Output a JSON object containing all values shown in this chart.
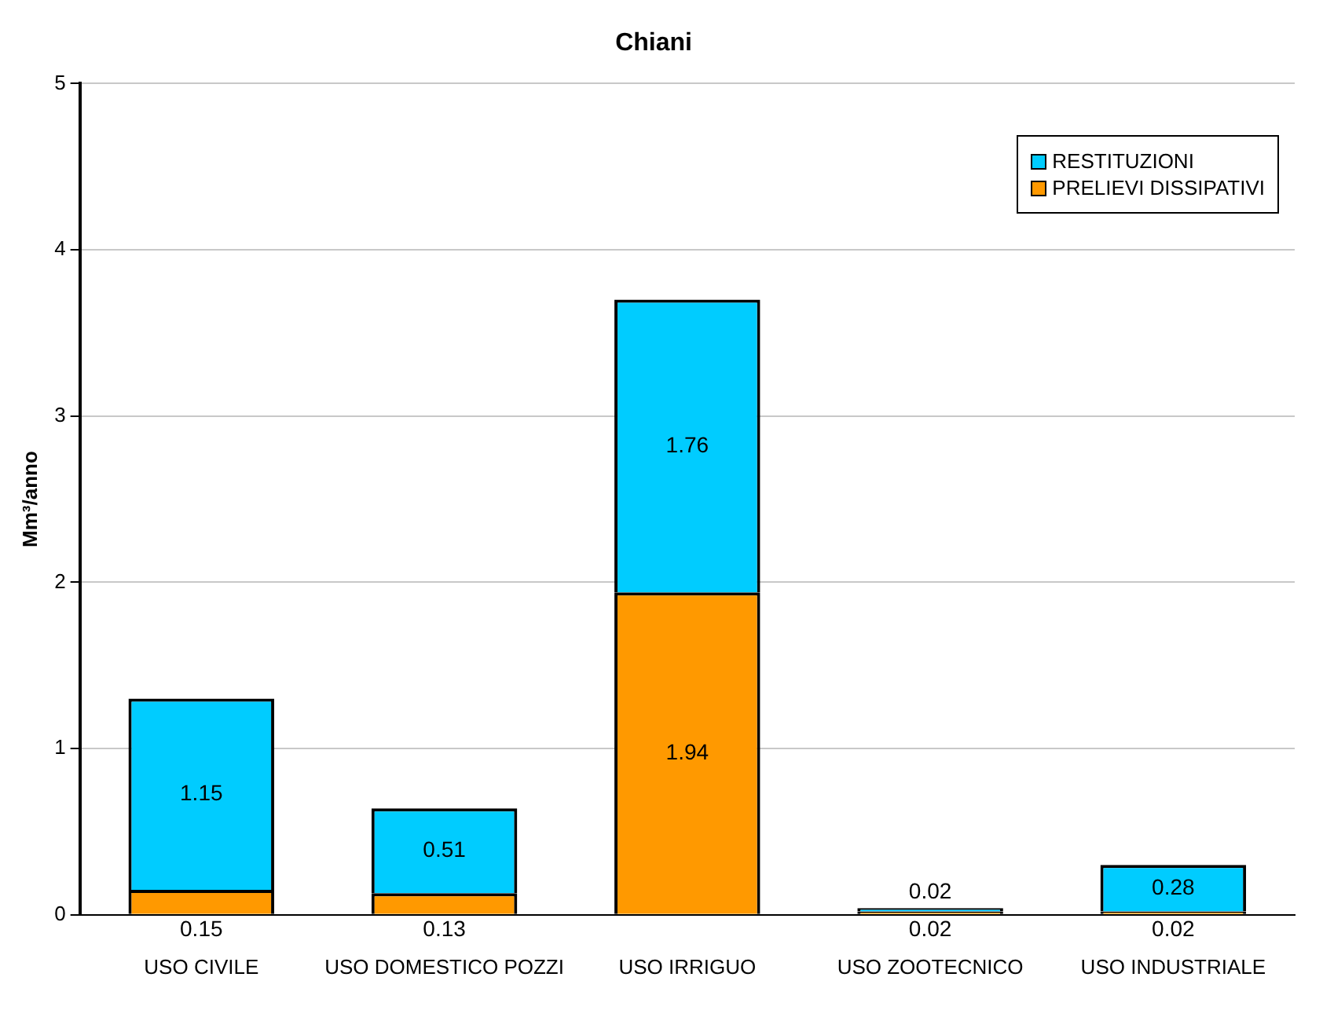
{
  "chart_data": {
    "type": "bar",
    "title": "Chiani",
    "ylabel": "Mm³/anno",
    "categories": [
      "USO CIVILE",
      "USO DOMESTICO POZZI",
      "USO IRRIGUO",
      "USO ZOOTECNICO",
      "USO INDUSTRIALE"
    ],
    "stacked": true,
    "series": [
      {
        "name": "PRELIEVI DISSIPATIVI",
        "color": "#ff9900",
        "values": [
          0.15,
          0.13,
          1.94,
          0.02,
          0.02
        ]
      },
      {
        "name": "RESTITUZIONI",
        "color": "#00ccff",
        "values": [
          1.15,
          0.51,
          1.76,
          0.02,
          0.28
        ]
      }
    ],
    "ylim": [
      0,
      5
    ],
    "yticks": [
      0,
      1,
      2,
      3,
      4,
      5
    ],
    "grid": "y",
    "legend": "top right",
    "data_labels": true
  }
}
